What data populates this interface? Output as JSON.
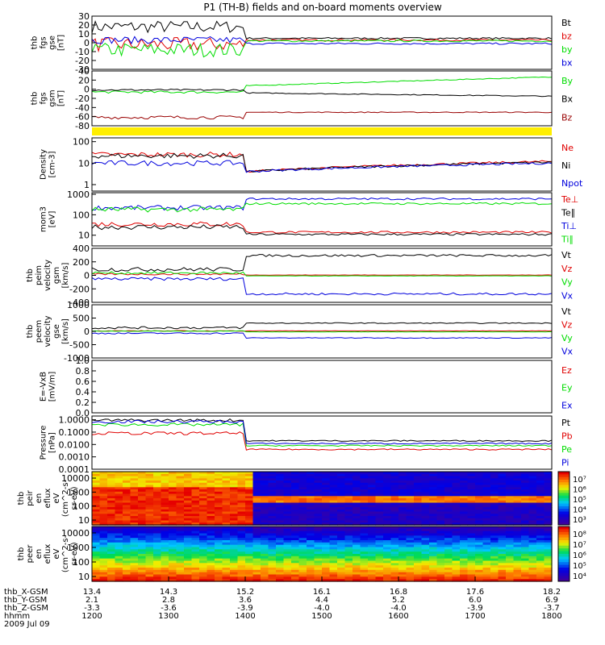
{
  "title": "P1 (TH-B) fields and on-board moments overview",
  "date_label": "2009 Jul 09",
  "colors": {
    "black": "#000000",
    "red": "#e00000",
    "green": "#00dd00",
    "blue": "#0000dd",
    "darkred": "#990000",
    "yellow": "#ffee00"
  },
  "footer": {
    "rows": [
      {
        "label": "thb_X-GSM",
        "values": [
          "13.4",
          "14.3",
          "15.2",
          "16.1",
          "16.8",
          "17.6",
          "18.2"
        ]
      },
      {
        "label": "thb_Y-GSM",
        "values": [
          "2.1",
          "2.8",
          "3.6",
          "4.4",
          "5.2",
          "6.0",
          "6.9"
        ]
      },
      {
        "label": "thb_Z-GSM",
        "values": [
          "-3.3",
          "-3.6",
          "-3.9",
          "-4.0",
          "-4.0",
          "-3.9",
          "-3.7"
        ]
      },
      {
        "label": "hhmm",
        "values": [
          "1200",
          "1300",
          "1400",
          "1500",
          "1600",
          "1700",
          "1800"
        ]
      }
    ]
  },
  "chart_data": [
    {
      "type": "line",
      "panel": "fgs_gse",
      "ylabel": [
        "thb",
        "fgs",
        "gse",
        "[nT]"
      ],
      "ylim": [
        -30,
        30
      ],
      "ticks": [
        "30",
        "20",
        "10",
        "0",
        "-10",
        "-20",
        "-30"
      ],
      "legend": [
        "Bt",
        "bz",
        "by",
        "bx"
      ],
      "series": [
        {
          "name": "Bt",
          "color": "black",
          "before": 18,
          "after": 5,
          "noise_before": 7,
          "noise_after": 1
        },
        {
          "name": "bz",
          "color": "red",
          "before": -2,
          "after": 3,
          "noise_before": 8,
          "noise_after": 1
        },
        {
          "name": "by",
          "color": "green",
          "before": -8,
          "after": 2,
          "noise_before": 8,
          "noise_after": 1
        },
        {
          "name": "bx",
          "color": "blue",
          "before": 3,
          "after": -1,
          "noise_before": 4,
          "noise_after": 1
        }
      ]
    },
    {
      "type": "line",
      "panel": "fgs_gsm",
      "ylabel": [
        "thb",
        "fgs",
        "gsm",
        "[nT]"
      ],
      "ylim": [
        -90,
        40
      ],
      "ticks": [
        "40",
        "20",
        "0",
        "-20",
        "-40",
        "-60",
        "-80"
      ],
      "legend": [
        "By",
        "Bx",
        "Bz"
      ],
      "series": [
        {
          "name": "By",
          "color": "green",
          "before": -10,
          "after": 5,
          "end": 26,
          "noise_before": 3,
          "noise_after": 1
        },
        {
          "name": "Bx",
          "color": "black",
          "before": -5,
          "after": -12,
          "end": -20,
          "noise_before": 2,
          "noise_after": 1
        },
        {
          "name": "Bz",
          "color": "darkred",
          "before": -70,
          "after": -58,
          "end": -58,
          "noise_before": 4,
          "noise_after": 1
        }
      ]
    },
    {
      "type": "line",
      "panel": "density",
      "ylabel": [
        "Density",
        "[cm-3]"
      ],
      "log": true,
      "ylim": [
        0.5,
        150
      ],
      "ticks": [
        "100",
        "10",
        "1"
      ],
      "tick_values": [
        100,
        10,
        1
      ],
      "legend": [
        "Ne",
        "Ni",
        "Npot"
      ],
      "series": [
        {
          "name": "Ne",
          "color": "red",
          "before": 25,
          "after": 4,
          "end": 12
        },
        {
          "name": "Ni",
          "color": "black",
          "before": 22,
          "after": 4,
          "end": 11
        },
        {
          "name": "Npot",
          "color": "blue",
          "before": 10,
          "after": 4,
          "end": 10
        }
      ]
    },
    {
      "type": "line",
      "panel": "temperature",
      "ylabel": [
        "mom3",
        "[eV]"
      ],
      "log": true,
      "ylim": [
        3,
        1200
      ],
      "ticks": [
        "1000",
        "100",
        "10"
      ],
      "tick_values": [
        1000,
        100,
        10
      ],
      "legend": [
        "Te⊥",
        "Te∥",
        "Ti⊥",
        "Ti∥"
      ],
      "series": [
        {
          "name": "Te⊥",
          "color": "red",
          "before": 35,
          "after": 14
        },
        {
          "name": "Te∥",
          "color": "black",
          "before": 25,
          "after": 11
        },
        {
          "name": "Ti⊥",
          "color": "blue",
          "before": 220,
          "after": 600
        },
        {
          "name": "Ti∥",
          "color": "green",
          "before": 180,
          "after": 350
        }
      ]
    },
    {
      "type": "line",
      "panel": "peim_velocity",
      "ylabel": [
        "thb",
        "peim",
        "velocity",
        "gsm",
        "[km/s]"
      ],
      "ylim": [
        -450,
        450
      ],
      "ticks": [
        "400",
        "200",
        "0",
        "-200",
        "-400"
      ],
      "legend": [
        "Vt",
        "Vz",
        "Vy",
        "Vx"
      ],
      "series": [
        {
          "name": "Vt",
          "color": "black",
          "before": 100,
          "after": 330
        },
        {
          "name": "Vz",
          "color": "red",
          "before": 20,
          "after": 5
        },
        {
          "name": "Vy",
          "color": "green",
          "before": 40,
          "after": -10
        },
        {
          "name": "Vx",
          "color": "blue",
          "before": -60,
          "after": -310
        }
      ]
    },
    {
      "type": "line",
      "panel": "peem_velocity",
      "ylabel": [
        "thb",
        "peem",
        "velocity",
        "gse",
        "[km/s]"
      ],
      "ylim": [
        -1100,
        1100
      ],
      "ticks": [
        "1000",
        "500",
        "0",
        "-500",
        "-1000"
      ],
      "legend": [
        "Vt",
        "Vz",
        "Vy",
        "Vx"
      ],
      "series": [
        {
          "name": "Vt",
          "color": "black",
          "before": 150,
          "after": 340
        },
        {
          "name": "Vz",
          "color": "red",
          "before": 20,
          "after": 20
        },
        {
          "name": "Vy",
          "color": "green",
          "before": 10,
          "after": -20
        },
        {
          "name": "Vx",
          "color": "blue",
          "before": -80,
          "after": -270
        }
      ]
    },
    {
      "type": "line",
      "panel": "efield",
      "ylabel": [
        "E=-VxB",
        "[mV/m]"
      ],
      "ylim": [
        0,
        1
      ],
      "ticks": [
        "1.0",
        "0.8",
        "0.6",
        "0.4",
        "0.2",
        "0.0"
      ],
      "legend": [
        "Ez",
        "Ey",
        "Ex"
      ],
      "series": []
    },
    {
      "type": "line",
      "panel": "pressure",
      "ylabel": [
        "Pressure",
        "[nPa]"
      ],
      "log": true,
      "ylim": [
        0.0001,
        2
      ],
      "ticks": [
        "1.0000",
        "0.1000",
        "0.0100",
        "0.0010",
        "0.0001"
      ],
      "tick_values": [
        1,
        0.1,
        0.01,
        0.001,
        0.0001
      ],
      "legend": [
        "Pt",
        "Pb",
        "Pe",
        "Pi"
      ],
      "series": [
        {
          "name": "Pt",
          "color": "black",
          "before": 0.9,
          "after": 0.02
        },
        {
          "name": "Pb",
          "color": "red",
          "before": 0.08,
          "after": 0.004
        },
        {
          "name": "Pe",
          "color": "green",
          "before": 0.4,
          "after": 0.008
        },
        {
          "name": "Pi",
          "color": "blue",
          "before": 0.7,
          "after": 0.012
        }
      ]
    },
    {
      "type": "heatmap",
      "panel": "peir_en_eflux",
      "ylabel": [
        "thb",
        "peir",
        "en",
        "eflux",
        "eV",
        "(cm^2-s-",
        "sr-eV)"
      ],
      "ticks": [
        "10000",
        "1000",
        "100",
        "10"
      ],
      "colorbar_ticks": [
        "10⁷",
        "10⁶",
        "10⁵",
        "10⁴",
        "10³"
      ]
    },
    {
      "type": "heatmap",
      "panel": "peer_en_eflux",
      "ylabel": [
        "thb",
        "peer",
        "en",
        "eflux",
        "eV",
        "(cm^2-s-",
        "sr-eV)"
      ],
      "ticks": [
        "10000",
        "1000",
        "100",
        "10"
      ],
      "colorbar_ticks": [
        "10⁸",
        "10⁷",
        "10⁶",
        "10⁵",
        "10⁴"
      ]
    }
  ]
}
